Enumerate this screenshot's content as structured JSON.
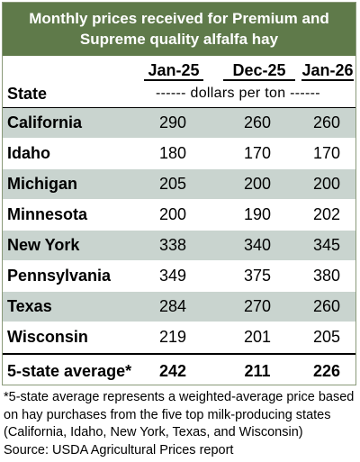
{
  "chart_data": {
    "type": "table",
    "title_lines": [
      "Monthly prices received for Premium and",
      "Supreme quality alfalfa hay"
    ],
    "columns": [
      "Jan-25",
      "Dec-25",
      "Jan-26"
    ],
    "row_header": "State",
    "units": "------ dollars per ton ------",
    "rows": [
      {
        "state": "California",
        "values": [
          "290",
          "260",
          "260"
        ]
      },
      {
        "state": "Idaho",
        "values": [
          "180",
          "170",
          "170"
        ]
      },
      {
        "state": "Michigan",
        "values": [
          "205",
          "200",
          "200"
        ]
      },
      {
        "state": "Minnesota",
        "values": [
          "200",
          "190",
          "202"
        ]
      },
      {
        "state": "New York",
        "values": [
          "338",
          "340",
          "345"
        ]
      },
      {
        "state": "Pennsylvania",
        "values": [
          "349",
          "375",
          "380"
        ]
      },
      {
        "state": "Texas",
        "values": [
          "284",
          "270",
          "260"
        ]
      },
      {
        "state": "Wisconsin",
        "values": [
          "219",
          "201",
          "205"
        ]
      }
    ],
    "average": {
      "label": "5-state average*",
      "values": [
        "242",
        "211",
        "226"
      ]
    }
  },
  "notes": [
    "*5-state average represents  a weighted-average price based",
    "on hay purchases from the five top milk-producing states",
    "(California, Idaho, New York, Texas, and Wisconsin)",
    "Source: USDA Agricultural Prices report"
  ],
  "colors": {
    "header_bg": "#5f7a4a",
    "row_shade": "#c9d4cf"
  }
}
